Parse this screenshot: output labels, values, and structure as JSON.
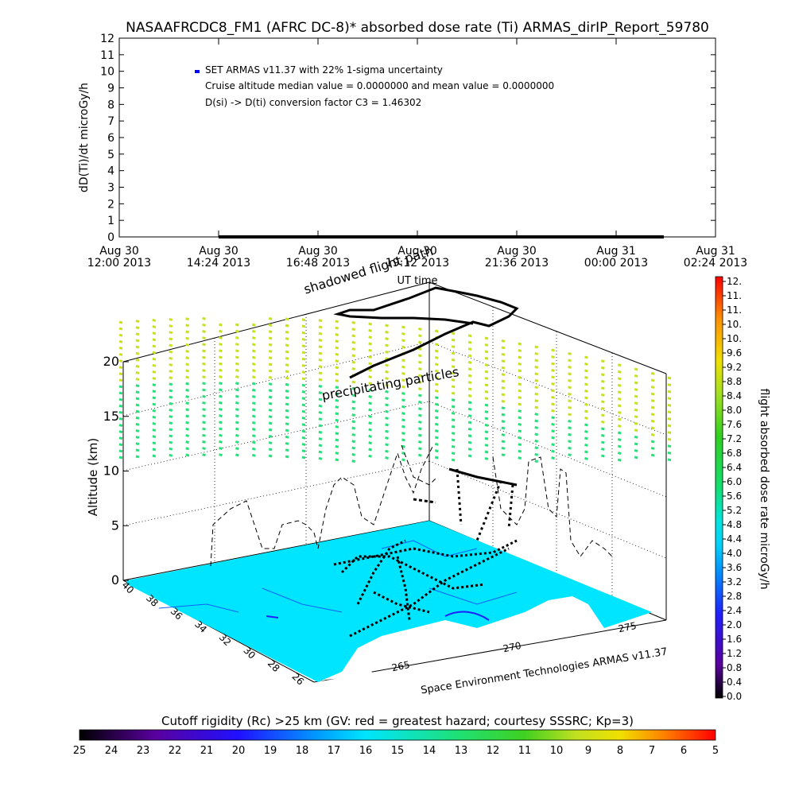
{
  "title": "NASAAFRCDC8_FM1 (AFRC DC-8)* absorbed dose rate (Ti) ARMAS_dirIP_Report_59780",
  "colors": {
    "track": "#000000",
    "dose_series": "#0000ff",
    "map_fill": "#00e5ff",
    "particles_high": "#c8e020",
    "particles_low": "#28e07a",
    "rigidity_min": "#000000",
    "rigidity_max": "#ff0000"
  },
  "chart_data": [
    {
      "type": "line",
      "title": "NASAAFRCDC8_FM1 (AFRC DC-8)* absorbed dose rate (Ti) ARMAS_dirIP_Report_59780",
      "ylabel": "dD(Ti)/dt microGy/h",
      "xlabel": "UT time",
      "ylim": [
        0,
        12
      ],
      "y_ticks": [
        "0",
        "1",
        "2",
        "3",
        "4",
        "5",
        "6",
        "7",
        "8",
        "9",
        "10",
        "11",
        "12"
      ],
      "x_ticks": [
        {
          "day": "Aug 30",
          "time": "12:00 2013"
        },
        {
          "day": "Aug 30",
          "time": "14:24 2013"
        },
        {
          "day": "Aug 30",
          "time": "16:48 2013"
        },
        {
          "day": "Aug 30",
          "time": "19:12 2013"
        },
        {
          "day": "Aug 30",
          "time": "21:36 2013"
        },
        {
          "day": "Aug 31",
          "time": "00:00 2013"
        },
        {
          "day": "Aug 31",
          "time": "02:24 2013"
        }
      ],
      "x_range_hours": [
        0,
        14.4
      ],
      "legend": [
        {
          "text": "SET ARMAS v11.37 with 22% 1-sigma uncertainty",
          "marker": true
        },
        {
          "text": "Cruise altitude median value = 0.0000000 and mean value = 0.0000000"
        },
        {
          "text": "D(si) -> D(ti) conversion factor C3 = 1.46302"
        }
      ],
      "series": [
        {
          "name": "SET ARMAS v11.37",
          "x_hours": [
            2.4,
            13.15
          ],
          "values": [
            0,
            0
          ]
        }
      ]
    },
    {
      "type": "scatter",
      "zlabel": "Altitude (km)",
      "z_ticks": [
        "0",
        "5",
        "10",
        "15",
        "20"
      ],
      "lat_ticks": [
        "40",
        "38",
        "36",
        "34",
        "32",
        "30",
        "28",
        "26"
      ],
      "lon_ticks": [
        "265",
        "270",
        "275"
      ],
      "annotations": {
        "top": "shadowed flight path",
        "particles": "precipitating particles",
        "credit": "Space Environment Technologies ARMAS v11.37"
      },
      "dose_colorbar": {
        "label": "flight absorbed dose rate microGy/h",
        "ticks": [
          "0.0",
          "0.4",
          "0.8",
          "1.2",
          "1.6",
          "2.0",
          "2.4",
          "2.8",
          "3.2",
          "3.6",
          "4.0",
          "4.4",
          "4.8",
          "5.2",
          "5.6",
          "6.0",
          "6.4",
          "6.8",
          "7.2",
          "7.6",
          "8.0",
          "8.4",
          "8.8",
          "9.2",
          "9.6",
          "10.",
          "10.",
          "11.",
          "11.",
          "12."
        ]
      },
      "rigidity_colorbar": {
        "label": "Cutoff rigidity (Rc) >25 km (GV: red = greatest hazard; courtesy SSSRC; Kp=3)",
        "ticks": [
          "25",
          "24",
          "23",
          "22",
          "21",
          "20",
          "19",
          "18",
          "17",
          "16",
          "15",
          "14",
          "13",
          "12",
          "11",
          "10",
          "9",
          "8",
          "7",
          "6",
          "5"
        ]
      }
    }
  ]
}
